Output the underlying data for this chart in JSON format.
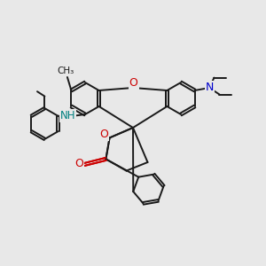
{
  "bg_color": "#e8e8e8",
  "bond_color": "#1a1a1a",
  "oxygen_color": "#cc0000",
  "nitrogen_color": "#0000cc",
  "nh_color": "#008080",
  "bond_width": 1.4,
  "figsize": [
    3.0,
    3.0
  ],
  "dpi": 100,
  "xlim": [
    0,
    10
  ],
  "ylim": [
    0,
    10
  ]
}
